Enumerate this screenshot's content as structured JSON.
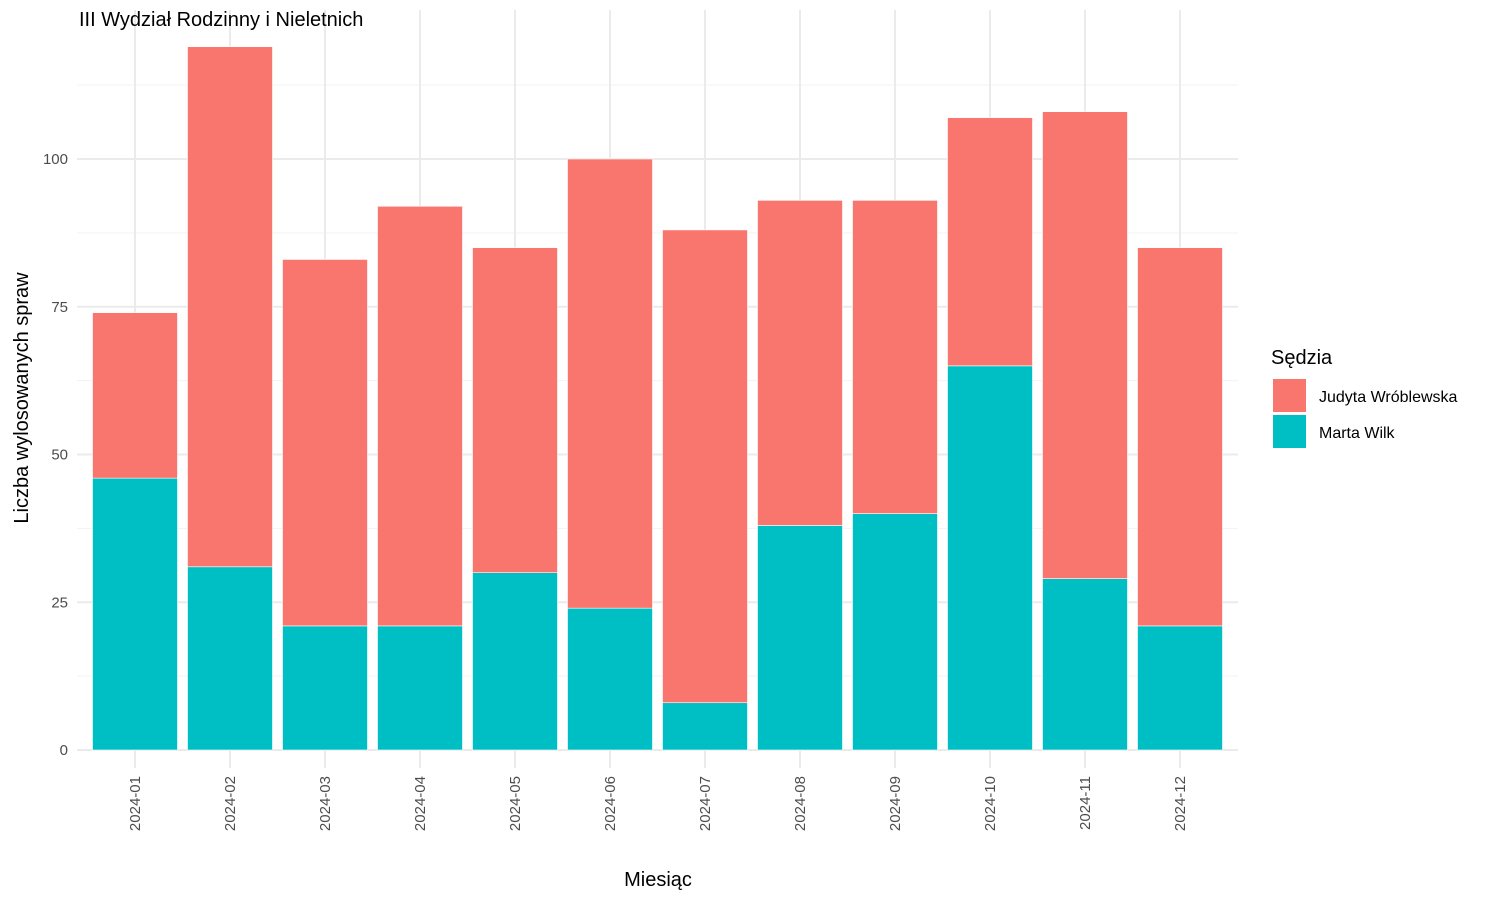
{
  "chart_data": {
    "type": "bar",
    "stacked": true,
    "title": "III Wydział Rodzinny i Nieletnich",
    "xlabel": "Miesiąc",
    "ylabel": "Liczba wylosowanych spraw",
    "ylim": [
      0,
      120
    ],
    "yticks": [
      0,
      25,
      50,
      75,
      100
    ],
    "grid": true,
    "legend_title": "Sędzia",
    "legend_position": "right",
    "categories": [
      "2024-01",
      "2024-02",
      "2024-03",
      "2024-04",
      "2024-05",
      "2024-06",
      "2024-07",
      "2024-08",
      "2024-09",
      "2024-10",
      "2024-11",
      "2024-12"
    ],
    "series": [
      {
        "name": "Marta Wilk",
        "color": "#00BFC4",
        "values": [
          46,
          31,
          21,
          21,
          30,
          24,
          8,
          38,
          40,
          65,
          29,
          21
        ]
      },
      {
        "name": "Judyta Wróblewska",
        "color": "#F8766D",
        "values": [
          28,
          88,
          62,
          71,
          55,
          76,
          80,
          55,
          53,
          42,
          79,
          64
        ]
      }
    ],
    "legend_order": [
      "Judyta Wróblewska",
      "Marta Wilk"
    ]
  }
}
